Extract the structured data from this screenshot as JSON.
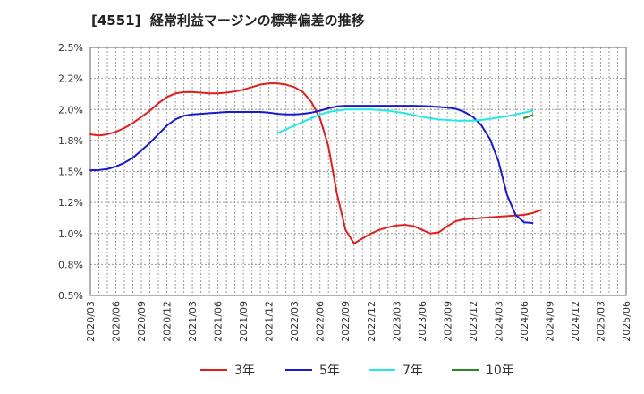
{
  "page_title": "[4551]  経常利益マージンの標準偏差の推移",
  "chart_data": {
    "type": "line",
    "title": "[4551]  経常利益マージンの標準偏差の推移",
    "xlabel": "",
    "ylabel": "",
    "ylim": [
      0.5,
      2.5
    ],
    "y_ticks": [
      0.5,
      0.75,
      1.0,
      1.25,
      1.5,
      1.75,
      2.0,
      2.25,
      2.5
    ],
    "y_tick_labels": [
      "0.5%",
      "0.8%",
      "1.0%",
      "1.2%",
      "1.5%",
      "1.8%",
      "2.0%",
      "2.2%",
      "2.5%"
    ],
    "x_tick_labels": [
      "2020/03",
      "2020/06",
      "2020/09",
      "2020/12",
      "2021/03",
      "2021/06",
      "2021/09",
      "2021/12",
      "2022/03",
      "2022/06",
      "2022/09",
      "2022/12",
      "2023/03",
      "2023/06",
      "2023/09",
      "2023/12",
      "2024/03",
      "2024/06",
      "2024/09",
      "2024/12",
      "2025/03",
      "2025/06"
    ],
    "grid": true,
    "legend_position": "bottom",
    "series": [
      {
        "name": "3年",
        "color": "#dd1f1f",
        "points": [
          [
            0,
            1.8
          ],
          [
            1,
            1.79
          ],
          [
            2,
            1.8
          ],
          [
            3,
            1.82
          ],
          [
            4,
            1.85
          ],
          [
            5,
            1.89
          ],
          [
            6,
            1.94
          ],
          [
            7,
            1.99
          ],
          [
            8,
            2.05
          ],
          [
            9,
            2.1
          ],
          [
            10,
            2.13
          ],
          [
            11,
            2.14
          ],
          [
            12,
            2.14
          ],
          [
            13,
            2.135
          ],
          [
            14,
            2.13
          ],
          [
            15,
            2.13
          ],
          [
            16,
            2.135
          ],
          [
            17,
            2.145
          ],
          [
            18,
            2.16
          ],
          [
            19,
            2.18
          ],
          [
            20,
            2.2
          ],
          [
            21,
            2.21
          ],
          [
            22,
            2.21
          ],
          [
            23,
            2.2
          ],
          [
            24,
            2.18
          ],
          [
            25,
            2.14
          ],
          [
            26,
            2.06
          ],
          [
            27,
            1.93
          ],
          [
            28,
            1.7
          ],
          [
            29,
            1.32
          ],
          [
            30,
            1.03
          ],
          [
            31,
            0.92
          ],
          [
            32,
            0.96
          ],
          [
            33,
            1.0
          ],
          [
            34,
            1.03
          ],
          [
            35,
            1.05
          ],
          [
            36,
            1.065
          ],
          [
            37,
            1.07
          ],
          [
            38,
            1.06
          ],
          [
            39,
            1.03
          ],
          [
            40,
            1.0
          ],
          [
            41,
            1.01
          ],
          [
            42,
            1.06
          ],
          [
            43,
            1.1
          ],
          [
            44,
            1.115
          ],
          [
            45,
            1.12
          ],
          [
            46,
            1.125
          ],
          [
            47,
            1.13
          ],
          [
            48,
            1.135
          ],
          [
            49,
            1.14
          ],
          [
            50,
            1.145
          ],
          [
            51,
            1.15
          ],
          [
            52,
            1.165
          ],
          [
            53,
            1.19
          ]
        ]
      },
      {
        "name": "5年",
        "color": "#1a1acc",
        "points": [
          [
            0,
            1.51
          ],
          [
            1,
            1.512
          ],
          [
            2,
            1.52
          ],
          [
            3,
            1.54
          ],
          [
            4,
            1.57
          ],
          [
            5,
            1.61
          ],
          [
            6,
            1.67
          ],
          [
            7,
            1.73
          ],
          [
            8,
            1.8
          ],
          [
            9,
            1.87
          ],
          [
            10,
            1.92
          ],
          [
            11,
            1.95
          ],
          [
            12,
            1.96
          ],
          [
            13,
            1.965
          ],
          [
            14,
            1.97
          ],
          [
            15,
            1.975
          ],
          [
            16,
            1.98
          ],
          [
            17,
            1.98
          ],
          [
            18,
            1.98
          ],
          [
            19,
            1.98
          ],
          [
            20,
            1.98
          ],
          [
            21,
            1.975
          ],
          [
            22,
            1.965
          ],
          [
            23,
            1.96
          ],
          [
            24,
            1.96
          ],
          [
            25,
            1.965
          ],
          [
            26,
            1.975
          ],
          [
            27,
            1.99
          ],
          [
            28,
            2.01
          ],
          [
            29,
            2.025
          ],
          [
            30,
            2.03
          ],
          [
            31,
            2.03
          ],
          [
            32,
            2.03
          ],
          [
            33,
            2.03
          ],
          [
            34,
            2.03
          ],
          [
            35,
            2.03
          ],
          [
            36,
            2.03
          ],
          [
            37,
            2.03
          ],
          [
            38,
            2.03
          ],
          [
            39,
            2.028
          ],
          [
            40,
            2.025
          ],
          [
            41,
            2.02
          ],
          [
            42,
            2.015
          ],
          [
            43,
            2.005
          ],
          [
            44,
            1.98
          ],
          [
            45,
            1.94
          ],
          [
            46,
            1.87
          ],
          [
            47,
            1.76
          ],
          [
            48,
            1.58
          ],
          [
            49,
            1.31
          ],
          [
            50,
            1.15
          ],
          [
            51,
            1.09
          ],
          [
            52,
            1.085
          ]
        ]
      },
      {
        "name": "7年",
        "color": "#22e8e8",
        "points": [
          [
            22,
            1.81
          ],
          [
            23,
            1.84
          ],
          [
            24,
            1.87
          ],
          [
            25,
            1.9
          ],
          [
            26,
            1.93
          ],
          [
            27,
            1.96
          ],
          [
            28,
            1.98
          ],
          [
            29,
            1.99
          ],
          [
            30,
            2.0
          ],
          [
            31,
            2.0
          ],
          [
            32,
            2.0
          ],
          [
            33,
            2.0
          ],
          [
            34,
            1.995
          ],
          [
            35,
            1.99
          ],
          [
            36,
            1.98
          ],
          [
            37,
            1.97
          ],
          [
            38,
            1.955
          ],
          [
            39,
            1.94
          ],
          [
            40,
            1.93
          ],
          [
            41,
            1.92
          ],
          [
            42,
            1.915
          ],
          [
            43,
            1.91
          ],
          [
            44,
            1.91
          ],
          [
            45,
            1.91
          ],
          [
            46,
            1.915
          ],
          [
            47,
            1.925
          ],
          [
            48,
            1.935
          ],
          [
            49,
            1.945
          ],
          [
            50,
            1.96
          ],
          [
            51,
            1.975
          ],
          [
            52,
            1.99
          ]
        ]
      },
      {
        "name": "10年",
        "color": "#2a8a2a",
        "points": [
          [
            51,
            1.93
          ],
          [
            52,
            1.955
          ]
        ]
      }
    ]
  }
}
